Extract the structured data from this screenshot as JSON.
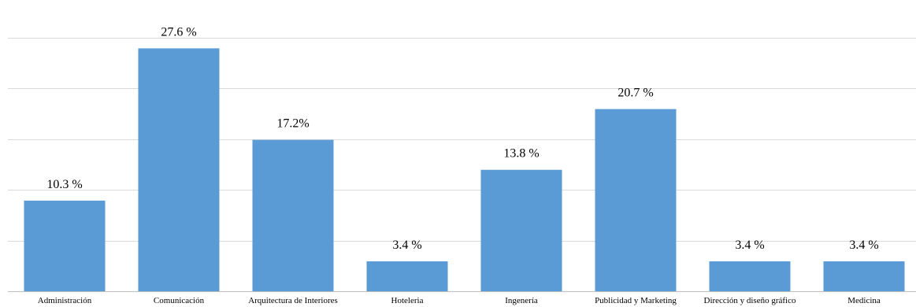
{
  "chart_data": {
    "type": "bar",
    "title": "",
    "xlabel": "",
    "ylabel": "",
    "ylim": [
      0,
      28.8
    ],
    "grid": true,
    "gridlines_y": [
      0,
      5.76,
      11.52,
      17.28,
      23.04,
      28.8
    ],
    "categories": [
      "Administración",
      "Comunicación",
      "Arquitectura de Interiores",
      "Hoteleria",
      "Ingenería",
      "Publicidad y Marketing",
      "Dirección y diseño gráfico",
      "Medicina"
    ],
    "values": [
      10.3,
      27.6,
      17.2,
      3.4,
      13.8,
      20.7,
      3.4,
      3.4
    ],
    "data_labels": [
      "10.3 %",
      "27.6 %",
      "17.2%",
      "3.4 %",
      "13.8 %",
      "20.7 %",
      "3.4 %",
      "3.4 %"
    ],
    "bar_color": "#5b9bd5"
  }
}
